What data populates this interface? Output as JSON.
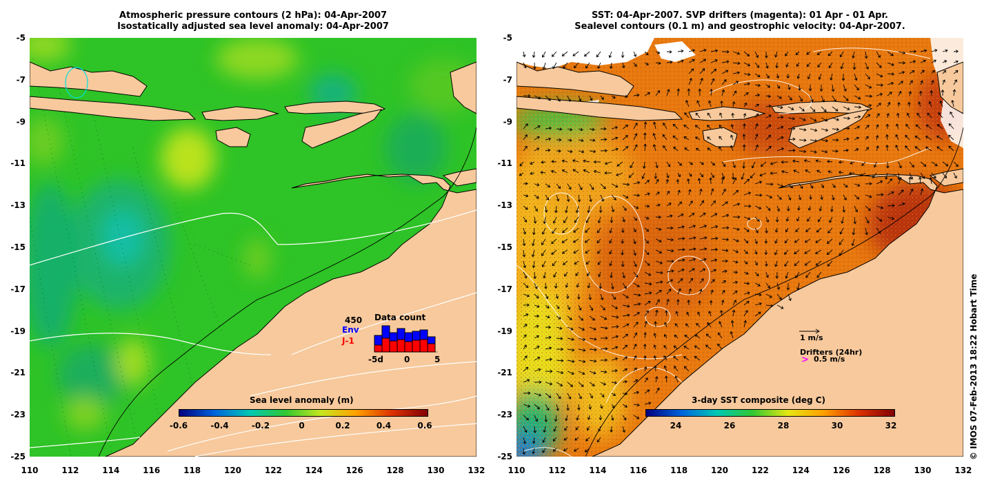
{
  "left_panel": {
    "title_line1": "Atmospheric pressure contours (2 hPa): 04-Apr-2007",
    "title_line2": "Isostatically adjusted sea level anomaly: 04-Apr-2007",
    "colorbar": {
      "label": "Sea level anomaly (m)",
      "ticks": [
        "-0.6",
        "-0.4",
        "-0.2",
        "0",
        "0.2",
        "0.4",
        "0.6"
      ]
    },
    "data_count_inset": {
      "title": "Data count",
      "max_label": "450",
      "series": [
        {
          "name": "Env",
          "color": "#0000ff"
        },
        {
          "name": "J-1",
          "color": "#ff0000"
        }
      ],
      "x_ticks": [
        "-5d",
        "0",
        "5"
      ]
    }
  },
  "right_panel": {
    "title_line1": "SST: 04-Apr-2007. SVP drifters (magenta): 01 Apr - 01 Apr.",
    "title_line2": "Sealevel contours (0.1 m) and geostrophic velocity: 04-Apr-2007.",
    "colorbar": {
      "label": "3-day SST composite (deg C)",
      "ticks": [
        "24",
        "26",
        "28",
        "30",
        "32"
      ]
    },
    "velocity_legend": "1 m/s",
    "drifters_legend": "Drifters (24hr)",
    "drifter_marker": ">",
    "drifter_speed": "0.5 m/s"
  },
  "axes": {
    "lat_ticks": [
      "-5",
      "-7",
      "-9",
      "-11",
      "-13",
      "-15",
      "-17",
      "-19",
      "-21",
      "-23",
      "-25"
    ],
    "lon_ticks": [
      "110",
      "112",
      "114",
      "116",
      "118",
      "120",
      "122",
      "124",
      "126",
      "128",
      "130",
      "132"
    ]
  },
  "credit": "© IMOS 07-Feb-2013 18:22 Hobart Time",
  "colors": {
    "land": "#f7c99c",
    "sea_green": "#22c11e",
    "sst_orange": "#e7780f",
    "cb_sla": [
      "#00007f",
      "#0064dc",
      "#00c8b4",
      "#32c832",
      "#c8e61e",
      "#ffa000",
      "#dc3200",
      "#820000"
    ],
    "cb_sst": [
      "#00007f",
      "#0064dc",
      "#00c8b4",
      "#32c832",
      "#e6e614",
      "#ffa000",
      "#dc3200",
      "#820000"
    ]
  }
}
